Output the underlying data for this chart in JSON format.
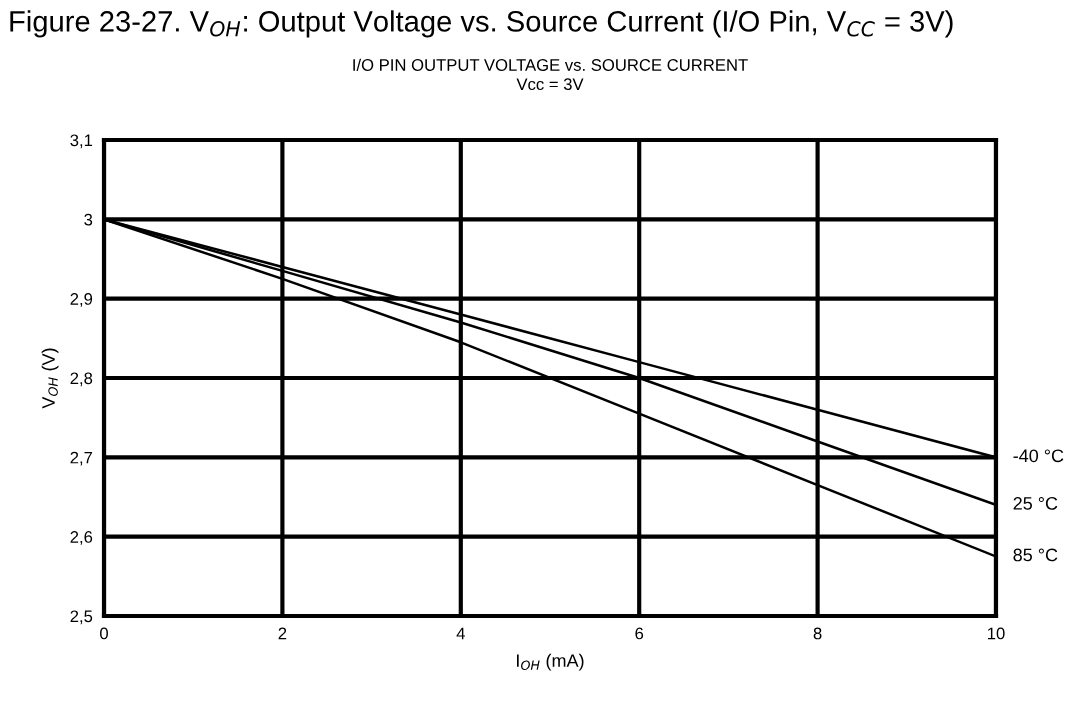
{
  "chart_data": {
    "type": "line",
    "title": "Figure 23-27. V$_{OH}$: Output Voltage vs. Source Current (I/O Pin, V$_{CC}$ = 3V)",
    "subtitle": "I/O PIN OUTPUT VOLTAGE vs. SOURCE CURRENT\nVcc = 3V",
    "xlabel": "I$_{OH}$ (mA)",
    "ylabel": "V$_{OH}$ (V)",
    "x": [
      0,
      2,
      4,
      6,
      8,
      10
    ],
    "series": [
      {
        "name": "-40 °C",
        "color": "#000000",
        "values": [
          3.0,
          2.94,
          2.88,
          2.82,
          2.76,
          2.7
        ]
      },
      {
        "name": "25 °C",
        "color": "#000000",
        "values": [
          3.0,
          2.935,
          2.87,
          2.8,
          2.72,
          2.64
        ]
      },
      {
        "name": "85 °C",
        "color": "#000000",
        "values": [
          3.0,
          2.925,
          2.845,
          2.755,
          2.665,
          2.575
        ]
      }
    ],
    "xlim": [
      0,
      10
    ],
    "xticks": [
      0,
      2,
      4,
      6,
      8,
      10
    ],
    "ylim": [
      2.5,
      3.1
    ],
    "yticks": [
      {
        "value": 2.5,
        "label": "2,5"
      },
      {
        "value": 2.6,
        "label": "2,6"
      },
      {
        "value": 2.7,
        "label": "2,7"
      },
      {
        "value": 2.8,
        "label": "2,8"
      },
      {
        "value": 2.9,
        "label": "2,9"
      },
      3,
      {
        "value": 3.1,
        "label": "3,1"
      }
    ],
    "grid": true,
    "marker": "none",
    "line_style": "solid"
  }
}
